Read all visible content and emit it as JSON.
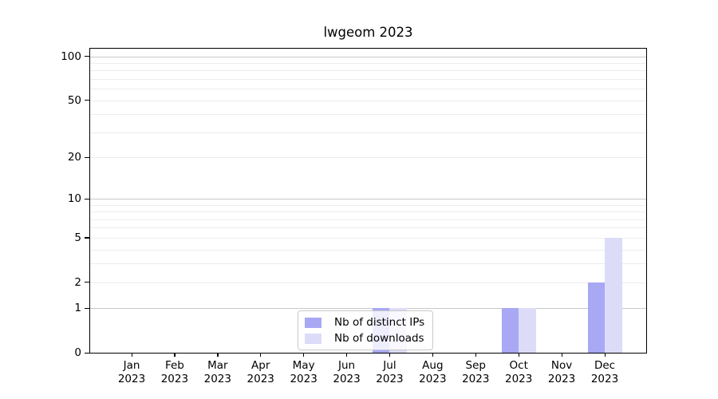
{
  "chart_data": {
    "type": "bar",
    "title": "lwgeom 2023",
    "categories": [
      {
        "month": "Jan",
        "year": "2023"
      },
      {
        "month": "Feb",
        "year": "2023"
      },
      {
        "month": "Mar",
        "year": "2023"
      },
      {
        "month": "Apr",
        "year": "2023"
      },
      {
        "month": "May",
        "year": "2023"
      },
      {
        "month": "Jun",
        "year": "2023"
      },
      {
        "month": "Jul",
        "year": "2023"
      },
      {
        "month": "Aug",
        "year": "2023"
      },
      {
        "month": "Sep",
        "year": "2023"
      },
      {
        "month": "Oct",
        "year": "2023"
      },
      {
        "month": "Nov",
        "year": "2023"
      },
      {
        "month": "Dec",
        "year": "2023"
      }
    ],
    "series": [
      {
        "name": "Nb of distinct IPs",
        "color": "#a8a8f4",
        "values": [
          0,
          0,
          0,
          0,
          0,
          0,
          1,
          0,
          0,
          1,
          0,
          2
        ]
      },
      {
        "name": "Nb of downloads",
        "color": "#dcdcf9",
        "values": [
          0,
          0,
          0,
          0,
          0,
          0,
          1,
          0,
          0,
          1,
          0,
          5
        ]
      }
    ],
    "yscale": "log1p",
    "ylim": [
      0,
      113
    ],
    "yticks": [
      0,
      1,
      2,
      5,
      10,
      20,
      50,
      100
    ],
    "major_gridlines": [
      1,
      10,
      100
    ],
    "minor_gridlines": [
      2,
      3,
      4,
      5,
      6,
      7,
      8,
      9,
      20,
      30,
      40,
      50,
      60,
      70,
      80,
      90
    ],
    "grid": true,
    "legend_position": "inside lower-center",
    "colors": {
      "major_grid": "#c8c8c8",
      "minor_grid": "#ececec",
      "axis": "#000000",
      "legend_border": "#c9c9c9",
      "legend_background": "rgba(255,255,255,0.8)"
    }
  }
}
